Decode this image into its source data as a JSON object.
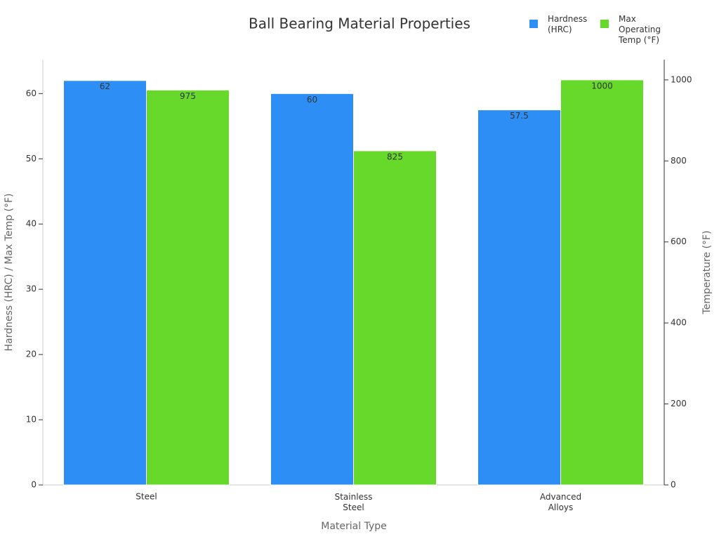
{
  "chart_data": {
    "type": "bar",
    "title": "Ball Bearing Material Properties",
    "xlabel": "Material Type",
    "ylabel": "Hardness (HRC) / Max Temp (°F)",
    "y2label": "Temperature (°F)",
    "categories": [
      "Steel",
      "Stainless\nSteel",
      "Advanced\nAlloys"
    ],
    "series": [
      {
        "name": "Hardness\n(HRC)",
        "color": "#2d8ff5",
        "values": [
          62,
          60,
          57.5
        ]
      },
      {
        "name": "Max\nOperating\nTemp (°F)",
        "color": "#66d92a",
        "values": [
          975,
          825,
          1000
        ],
        "axis": "y2"
      }
    ],
    "ylim": [
      0,
      65.2
    ],
    "yticks": [
      0,
      10,
      20,
      30,
      40,
      50,
      60
    ],
    "y2lim": [
      0,
      1050
    ],
    "y2ticks": [
      0,
      200,
      400,
      600,
      800,
      1000
    ],
    "legend": "top-right",
    "grid": false
  }
}
